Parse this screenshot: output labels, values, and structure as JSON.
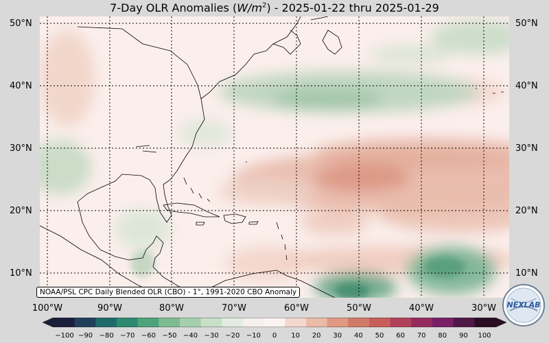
{
  "title": "7-Day OLR Anomalies (W/m²) - 2025-01-22 thru 2025-01-29",
  "title_prefix": "7-Day OLR Anomalies (",
  "title_units_w": "W/m",
  "title_units_exp": "2",
  "title_suffix": ") - 2025-01-22 thru 2025-01-29",
  "source_note": "NOAA/PSL CPC Daily Blended OLR (CBO) - 1°, 1991-2020 CBO Anomaly",
  "latitude_labels": [
    "50°N",
    "40°N",
    "30°N",
    "20°N",
    "10°N"
  ],
  "longitude_labels": [
    "100°W",
    "90°W",
    "80°W",
    "70°W",
    "60°W",
    "50°W",
    "40°W",
    "30°W"
  ],
  "colorbar": {
    "ticks": [
      "−100",
      "−90",
      "−80",
      "−70",
      "−60",
      "−50",
      "−40",
      "−30",
      "−20",
      "−10",
      "0",
      "10",
      "20",
      "30",
      "40",
      "50",
      "60",
      "70",
      "80",
      "90",
      "100"
    ],
    "min": -100,
    "max": 100,
    "colors": [
      "#1b1e3a",
      "#203f5a",
      "#1f6a6a",
      "#2b8a70",
      "#4ea27c",
      "#7fbb92",
      "#a6cfae",
      "#c8dfc8",
      "#e2ece0",
      "#f7efec",
      "#fbf3f1",
      "#f2d8cf",
      "#e9bba8",
      "#df9a83",
      "#d27a68",
      "#c65e5c",
      "#b04058",
      "#952a5f",
      "#772066",
      "#4f1745",
      "#2a0d22"
    ]
  },
  "logo_text": "NEXLAB",
  "map": {
    "region": "Western North Atlantic, Gulf of Mexico and Caribbean",
    "lon_range": [
      -102,
      -26
    ],
    "lat_range": [
      6,
      51
    ],
    "negative_anomaly_color": "#5f9f7f",
    "positive_anomaly_color": "#d98f7a",
    "background_color": "#fbefec"
  }
}
